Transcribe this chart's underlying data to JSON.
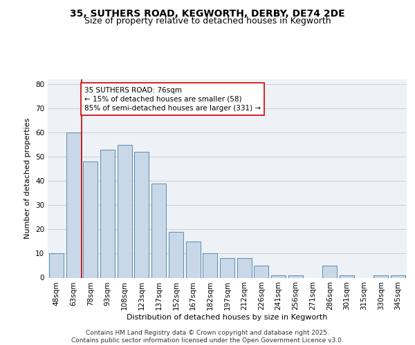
{
  "title": "35, SUTHERS ROAD, KEGWORTH, DERBY, DE74 2DE",
  "subtitle": "Size of property relative to detached houses in Kegworth",
  "xlabel": "Distribution of detached houses by size in Kegworth",
  "ylabel": "Number of detached properties",
  "categories": [
    "48sqm",
    "63sqm",
    "78sqm",
    "93sqm",
    "108sqm",
    "123sqm",
    "137sqm",
    "152sqm",
    "167sqm",
    "182sqm",
    "197sqm",
    "212sqm",
    "226sqm",
    "241sqm",
    "256sqm",
    "271sqm",
    "286sqm",
    "301sqm",
    "315sqm",
    "330sqm",
    "345sqm"
  ],
  "values": [
    10,
    60,
    48,
    53,
    55,
    52,
    39,
    19,
    15,
    10,
    8,
    8,
    5,
    1,
    1,
    0,
    5,
    1,
    0,
    1,
    1
  ],
  "bar_color": "#c8d8e8",
  "bar_edge_color": "#5a8ab0",
  "vline_x_index": 2,
  "vline_color": "#cc0000",
  "annotation_text": "35 SUTHERS ROAD: 76sqm\n← 15% of detached houses are smaller (58)\n85% of semi-detached houses are larger (331) →",
  "annotation_box_color": "#ffffff",
  "annotation_box_edge": "#cc0000",
  "ylim": [
    0,
    82
  ],
  "yticks": [
    0,
    10,
    20,
    30,
    40,
    50,
    60,
    70,
    80
  ],
  "grid_color": "#cccccc",
  "bg_color": "#eef2f7",
  "footer": "Contains HM Land Registry data © Crown copyright and database right 2025.\nContains public sector information licensed under the Open Government Licence v3.0.",
  "title_fontsize": 10,
  "subtitle_fontsize": 9,
  "axis_label_fontsize": 8,
  "tick_fontsize": 7.5,
  "annotation_fontsize": 7.5,
  "footer_fontsize": 6.5
}
